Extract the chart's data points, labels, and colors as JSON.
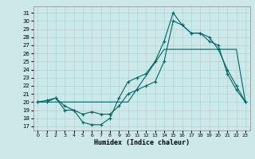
{
  "xlabel": "Humidex (Indice chaleur)",
  "bg_color": "#cce8e8",
  "line_color": "#006666",
  "grid_color": "#aad4d4",
  "xlim": [
    -0.5,
    23.5
  ],
  "ylim": [
    16.5,
    31.8
  ],
  "yticks": [
    17,
    18,
    19,
    20,
    21,
    22,
    23,
    24,
    25,
    26,
    27,
    28,
    29,
    30,
    31
  ],
  "xticks": [
    0,
    1,
    2,
    3,
    4,
    5,
    6,
    7,
    8,
    9,
    10,
    11,
    12,
    13,
    14,
    15,
    16,
    17,
    18,
    19,
    20,
    21,
    22,
    23
  ],
  "line1_x": [
    0,
    1,
    2,
    3,
    4,
    5,
    6,
    7,
    8,
    9,
    10,
    11,
    12,
    13,
    14,
    15,
    16,
    17,
    18,
    19,
    20,
    21,
    22,
    23
  ],
  "line1_y": [
    20.0,
    20.2,
    20.5,
    19.0,
    19.0,
    17.5,
    17.2,
    17.2,
    18.0,
    20.5,
    22.5,
    23.0,
    23.5,
    25.0,
    27.5,
    31.0,
    29.5,
    28.5,
    28.5,
    27.5,
    27.0,
    23.5,
    21.5,
    20.0
  ],
  "line2_x": [
    0,
    1,
    2,
    3,
    4,
    5,
    6,
    7,
    8,
    9,
    10,
    11,
    12,
    13,
    14,
    15,
    16,
    17,
    18,
    19,
    20,
    21,
    22,
    23
  ],
  "line2_y": [
    20.0,
    20.0,
    20.5,
    19.5,
    19.0,
    18.5,
    18.8,
    18.5,
    18.5,
    19.5,
    21.0,
    21.5,
    22.0,
    22.5,
    25.0,
    30.0,
    29.5,
    28.5,
    28.5,
    28.0,
    26.5,
    24.0,
    22.0,
    20.0
  ],
  "line3_x": [
    0,
    2,
    9,
    10,
    14,
    20,
    22,
    23
  ],
  "line3_y": [
    20.0,
    20.0,
    20.0,
    20.0,
    26.5,
    26.5,
    26.5,
    20.0
  ]
}
